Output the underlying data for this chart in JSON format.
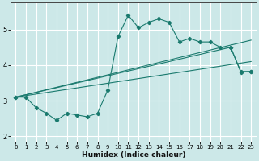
{
  "xlabel": "Humidex (Indice chaleur)",
  "bg_color": "#cce8e8",
  "grid_color": "#ffffff",
  "line_color": "#1a7a6e",
  "xlim": [
    -0.5,
    23.5
  ],
  "ylim": [
    1.85,
    5.75
  ],
  "xticks": [
    0,
    1,
    2,
    3,
    4,
    5,
    6,
    7,
    8,
    9,
    10,
    11,
    12,
    13,
    14,
    15,
    16,
    17,
    18,
    19,
    20,
    21,
    22,
    23
  ],
  "yticks": [
    2,
    3,
    4,
    5
  ],
  "curve_x": [
    0,
    1,
    2,
    3,
    4,
    5,
    6,
    7,
    8,
    9,
    10,
    11,
    12,
    13,
    14,
    15,
    16,
    17,
    18,
    19,
    20,
    21,
    22,
    23
  ],
  "curve_y": [
    3.1,
    3.1,
    2.8,
    2.65,
    2.45,
    2.65,
    2.6,
    2.55,
    2.65,
    3.3,
    4.8,
    5.4,
    5.05,
    5.2,
    5.3,
    5.2,
    4.65,
    4.75,
    4.65,
    4.65,
    4.5,
    4.5,
    3.8,
    3.82
  ],
  "trend1_x": [
    0,
    23
  ],
  "trend1_y": [
    3.1,
    4.7
  ],
  "trend2_x": [
    0,
    23
  ],
  "trend2_y": [
    3.1,
    4.1
  ],
  "trend3_x": [
    0,
    21,
    22,
    23
  ],
  "trend3_y": [
    3.1,
    4.5,
    3.82,
    3.82
  ]
}
